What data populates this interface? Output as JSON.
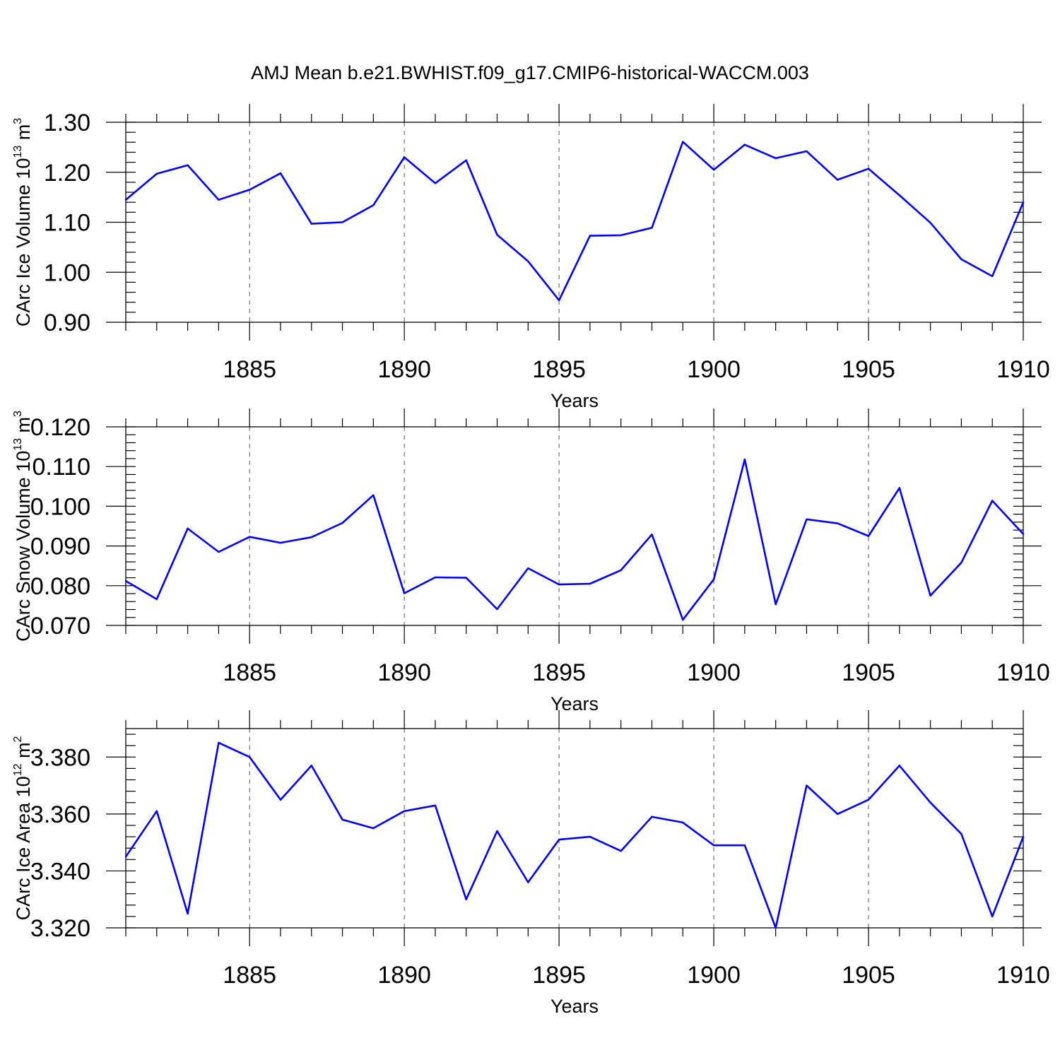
{
  "title": "AMJ Mean b.e21.BWHIST.f09_g17.CMIP6-historical-WACCM.003",
  "colors": {
    "series": "#0000ff",
    "axis": "#000000"
  },
  "chart_data": [
    {
      "type": "line",
      "title": "AMJ Mean b.e21.BWHIST.f09_g17.CMIP6-historical-WACCM.003",
      "xlabel": "Years",
      "ylabel": {
        "text": "CArc Ice Volume 10",
        "sup1": "13",
        "mid": " m",
        "sup2": "3"
      },
      "xlim": [
        1881,
        1910
      ],
      "ylim": [
        0.9,
        1.3
      ],
      "xticks": [
        "1885",
        "1890",
        "1895",
        "1900",
        "1905",
        "1910"
      ],
      "xtick_values": [
        1885,
        1890,
        1895,
        1900,
        1905,
        1910
      ],
      "yticks": [
        "0.90",
        "1.00",
        "1.10",
        "1.20",
        "1.30"
      ],
      "ytick_values": [
        0.9,
        1.0,
        1.1,
        1.2,
        1.3
      ],
      "y_minor_step": 0.02,
      "grid": "vertical dashed at major x ticks",
      "x": [
        1881,
        1882,
        1883,
        1884,
        1885,
        1886,
        1887,
        1888,
        1889,
        1890,
        1891,
        1892,
        1893,
        1894,
        1895,
        1896,
        1897,
        1898,
        1899,
        1900,
        1901,
        1902,
        1903,
        1904,
        1905,
        1906,
        1907,
        1908,
        1909,
        1910
      ],
      "values": [
        1.145,
        1.197,
        1.214,
        1.145,
        1.165,
        1.198,
        1.097,
        1.1,
        1.134,
        1.23,
        1.178,
        1.224,
        1.075,
        1.022,
        0.944,
        1.073,
        1.074,
        1.089,
        1.261,
        1.205,
        1.255,
        1.228,
        1.242,
        1.185,
        1.207,
        1.154,
        1.099,
        1.026,
        0.992,
        1.14
      ]
    },
    {
      "type": "line",
      "xlabel": "Years",
      "ylabel": {
        "text": "CArc Snow Volume 10",
        "sup1": "13",
        "mid": " m",
        "sup2": "3"
      },
      "xlim": [
        1881,
        1910
      ],
      "ylim": [
        0.07,
        0.12
      ],
      "xticks": [
        "1885",
        "1890",
        "1895",
        "1900",
        "1905",
        "1910"
      ],
      "xtick_values": [
        1885,
        1890,
        1895,
        1900,
        1905,
        1910
      ],
      "yticks": [
        "0.070",
        "0.080",
        "0.090",
        "0.100",
        "0.110",
        "0.120"
      ],
      "ytick_values": [
        0.07,
        0.08,
        0.09,
        0.1,
        0.11,
        0.12
      ],
      "y_minor_step": 0.002,
      "grid": "vertical dashed at major x ticks",
      "x": [
        1881,
        1882,
        1883,
        1884,
        1885,
        1886,
        1887,
        1888,
        1889,
        1890,
        1891,
        1892,
        1893,
        1894,
        1895,
        1896,
        1897,
        1898,
        1899,
        1900,
        1901,
        1902,
        1903,
        1904,
        1905,
        1906,
        1907,
        1908,
        1909,
        1910
      ],
      "values": [
        0.0812,
        0.0766,
        0.0944,
        0.0885,
        0.0923,
        0.0908,
        0.0922,
        0.0958,
        0.1028,
        0.0781,
        0.0821,
        0.082,
        0.0741,
        0.0844,
        0.0803,
        0.0805,
        0.0839,
        0.0929,
        0.0714,
        0.0816,
        0.1118,
        0.0753,
        0.0967,
        0.0957,
        0.0925,
        0.1046,
        0.0775,
        0.0858,
        0.1014,
        0.093
      ]
    },
    {
      "type": "line",
      "xlabel": "Years",
      "ylabel": {
        "text": "CArc Ice Area 10",
        "sup1": "12",
        "mid": " m",
        "sup2": "2"
      },
      "xlim": [
        1881,
        1910
      ],
      "ylim": [
        3.32,
        3.39
      ],
      "xticks": [
        "1885",
        "1890",
        "1895",
        "1900",
        "1905",
        "1910"
      ],
      "xtick_values": [
        1885,
        1890,
        1895,
        1900,
        1905,
        1910
      ],
      "yticks": [
        "3.320",
        "3.340",
        "3.360",
        "3.380"
      ],
      "ytick_values": [
        3.32,
        3.34,
        3.36,
        3.38
      ],
      "y_minor_step": 0.004,
      "grid": "vertical dashed at major x ticks",
      "x": [
        1881,
        1882,
        1883,
        1884,
        1885,
        1886,
        1887,
        1888,
        1889,
        1890,
        1891,
        1892,
        1893,
        1894,
        1895,
        1896,
        1897,
        1898,
        1899,
        1900,
        1901,
        1902,
        1903,
        1904,
        1905,
        1906,
        1907,
        1908,
        1909,
        1910
      ],
      "values": [
        3.345,
        3.361,
        3.325,
        3.385,
        3.38,
        3.365,
        3.377,
        3.358,
        3.355,
        3.361,
        3.363,
        3.33,
        3.354,
        3.336,
        3.351,
        3.352,
        3.347,
        3.359,
        3.357,
        3.349,
        3.349,
        3.32,
        3.37,
        3.36,
        3.365,
        3.377,
        3.364,
        3.353,
        3.324,
        3.352
      ]
    }
  ]
}
